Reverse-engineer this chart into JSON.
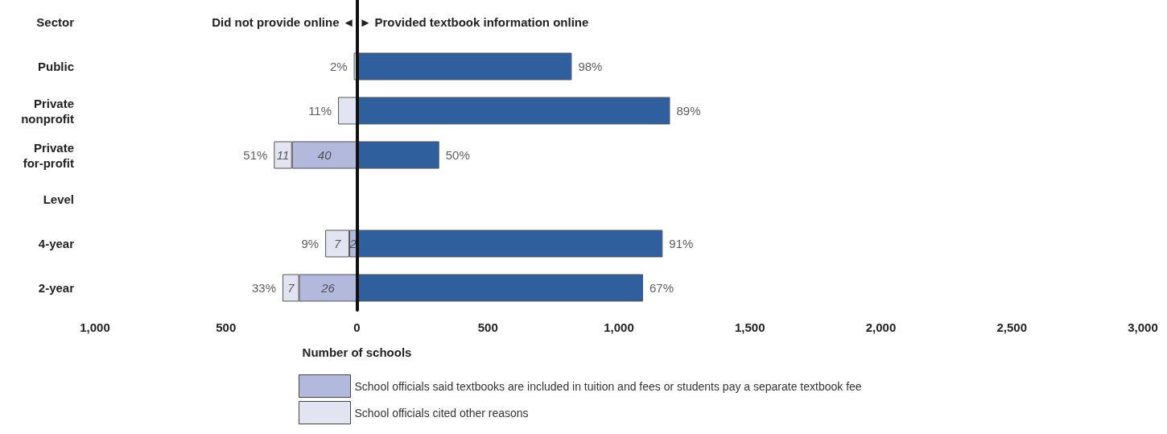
{
  "chart_data": {
    "type": "bar",
    "orientation": "horizontal",
    "stacked": true,
    "categories": [
      "Sector",
      "Public",
      "Private\nnonprofit",
      "Private\nfor-profit",
      "Level",
      "4-year",
      "2-year"
    ],
    "series": [
      {
        "color": "#2f5f9d",
        "values": [
          null,
          820,
          1195,
          314,
          null,
          1167,
          1092
        ]
      },
      {
        "name": "School officials said textbooks are included in tuition and fees or students pay a separate textbook fee",
        "color": "#b3b9dd",
        "values": [
          null,
          null,
          null,
          -248,
          null,
          -29,
          -221
        ]
      },
      {
        "name": "School officials cited other reasons",
        "color": "#e2e4f1",
        "values": [
          null,
          -12,
          -72,
          -69,
          null,
          -92,
          -63
        ]
      }
    ],
    "xlim": [
      -1000,
      3000
    ],
    "xticks": [
      {
        "value": -1000,
        "label": "1,000"
      },
      {
        "value": -500,
        "label": "500"
      },
      0,
      {
        "value": 500,
        "label": "500"
      },
      {
        "value": 1000,
        "label": "1,000"
      },
      {
        "value": 1500,
        "label": "1,500"
      },
      {
        "value": 2000,
        "label": "2,000"
      },
      {
        "value": 2500,
        "label": "2,500"
      },
      {
        "value": 3000,
        "label": "3,000"
      }
    ],
    "xlabel": "Number of schools",
    "annotations": [
      "Did not provide online ◄",
      "► Provided textbook information online",
      {
        "text": "2%",
        "x": -12,
        "y": "Public"
      },
      {
        "text": "11%",
        "x": -72,
        "y": "Private\nnonprofit"
      },
      {
        "text": "51%",
        "x": -317,
        "y": "Private\nfor-profit"
      },
      {
        "text": "9%",
        "x": -121,
        "y": "4-year"
      },
      {
        "text": "33%",
        "x": -284,
        "y": "2-year"
      },
      {
        "text": "98%",
        "x": 820,
        "y": "Public"
      },
      {
        "text": "89%",
        "x": 1195,
        "y": "Private\nnonprofit"
      },
      {
        "text": "50%",
        "x": 314,
        "y": "Private\nfor-profit"
      },
      {
        "text": "91%",
        "x": 1167,
        "y": "4-year"
      },
      {
        "text": "67%",
        "x": 1092,
        "y": "2-year"
      },
      {
        "text": "40",
        "x": 0,
        "y": "Private\nfor-profit"
      },
      {
        "text": "11",
        "x": -248,
        "y": "Private\nfor-profit"
      },
      {
        "text": "2",
        "x": 0,
        "y": "4-year"
      },
      {
        "text": "7",
        "x": -29,
        "y": "4-year"
      },
      {
        "text": "26",
        "x": 0,
        "y": "2-year"
      },
      {
        "text": "7",
        "x": -221,
        "y": "2-year"
      }
    ],
    "legend": "bottom"
  }
}
